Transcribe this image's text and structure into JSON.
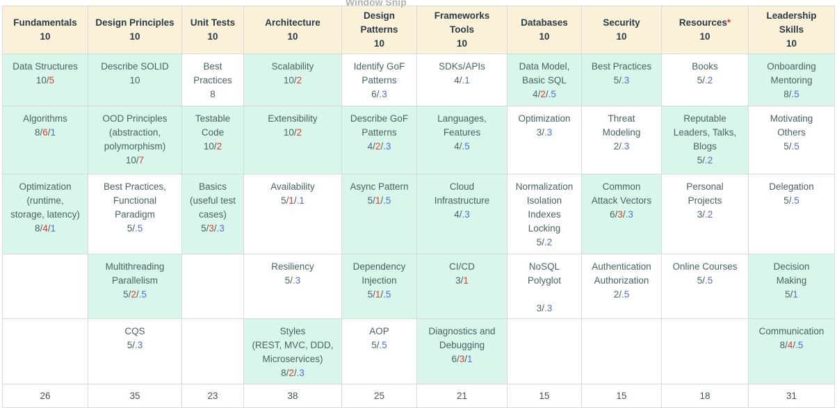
{
  "overlay": {
    "text": "Window Snip"
  },
  "palette": {
    "header_bg": "#fbf1d8",
    "highlight_bg": "#d9f6ea",
    "border": "#d5dade",
    "header_text": "#2a3b47",
    "cell_text": "#4a6264",
    "score_red": "#e5392e",
    "score_blue": "#4a6ee0"
  },
  "table": {
    "columns": [
      {
        "label": "Fundamentals",
        "max": "10",
        "star": false
      },
      {
        "label": "Design Principles",
        "max": "10",
        "star": false
      },
      {
        "label": "Unit Tests",
        "max": "10",
        "star": false
      },
      {
        "label": "Architecture",
        "max": "10",
        "star": false
      },
      {
        "label": "Design Patterns",
        "max": "10",
        "star": false
      },
      {
        "label": "Frameworks Tools",
        "max": "10",
        "star": false
      },
      {
        "label": "Databases",
        "max": "10",
        "star": false
      },
      {
        "label": "Security",
        "max": "10",
        "star": false
      },
      {
        "label": "Resources",
        "max": "10",
        "star": true
      },
      {
        "label": "Leadership Skills",
        "max": "10",
        "star": false
      }
    ],
    "rows": [
      [
        {
          "lines": [
            "Data Structures"
          ],
          "score": [
            [
              "10",
              "d"
            ],
            [
              "5",
              "r"
            ]
          ],
          "highlight": true
        },
        {
          "lines": [
            "Describe SOLID"
          ],
          "score": [
            [
              "10",
              "d"
            ]
          ],
          "highlight": true
        },
        {
          "lines": [
            "Best",
            "Practices"
          ],
          "score": [
            [
              "8",
              "d"
            ]
          ],
          "highlight": false
        },
        {
          "lines": [
            "Scalability"
          ],
          "score": [
            [
              "10",
              "d"
            ],
            [
              "2",
              "r"
            ]
          ],
          "highlight": true
        },
        {
          "lines": [
            "Identify GoF",
            "Patterns"
          ],
          "score": [
            [
              "6",
              "d"
            ],
            [
              ".3",
              "b"
            ]
          ],
          "highlight": false
        },
        {
          "lines": [
            "SDKs/APIs"
          ],
          "score": [
            [
              "4",
              "d"
            ],
            [
              ".1",
              "b"
            ]
          ],
          "highlight": false
        },
        {
          "lines": [
            "Data Model,",
            "Basic SQL"
          ],
          "score": [
            [
              "4",
              "d"
            ],
            [
              "2",
              "r"
            ],
            [
              ".5",
              "b"
            ]
          ],
          "highlight": true
        },
        {
          "lines": [
            "Best Practices"
          ],
          "score": [
            [
              "5",
              "d"
            ],
            [
              ".3",
              "b"
            ]
          ],
          "highlight": true
        },
        {
          "lines": [
            "Books"
          ],
          "score": [
            [
              "5",
              "d"
            ],
            [
              ".2",
              "b"
            ]
          ],
          "highlight": false
        },
        {
          "lines": [
            "Onboarding",
            "Mentoring"
          ],
          "score": [
            [
              "8",
              "d"
            ],
            [
              ".5",
              "b"
            ]
          ],
          "highlight": true
        }
      ],
      [
        {
          "lines": [
            "Algorithms"
          ],
          "score": [
            [
              "8",
              "d"
            ],
            [
              "6",
              "r"
            ],
            [
              "1",
              "b"
            ]
          ],
          "highlight": true
        },
        {
          "lines": [
            "OOD Principles",
            "(abstraction,",
            "polymorphism)"
          ],
          "score": [
            [
              "10",
              "d"
            ],
            [
              "7",
              "r"
            ]
          ],
          "highlight": true
        },
        {
          "lines": [
            "Testable",
            "Code"
          ],
          "score": [
            [
              "10",
              "d"
            ],
            [
              "2",
              "r"
            ]
          ],
          "highlight": true
        },
        {
          "lines": [
            "Extensibility"
          ],
          "score": [
            [
              "10",
              "d"
            ],
            [
              "2",
              "r"
            ]
          ],
          "highlight": true
        },
        {
          "lines": [
            "Describe GoF",
            "Patterns"
          ],
          "score": [
            [
              "4",
              "d"
            ],
            [
              "2",
              "r"
            ],
            [
              ".3",
              "b"
            ]
          ],
          "highlight": true
        },
        {
          "lines": [
            "Languages,",
            "Features"
          ],
          "score": [
            [
              "4",
              "d"
            ],
            [
              ".5",
              "b"
            ]
          ],
          "highlight": true
        },
        {
          "lines": [
            "Optimization"
          ],
          "score": [
            [
              "3",
              "d"
            ],
            [
              ".3",
              "b"
            ]
          ],
          "highlight": false
        },
        {
          "lines": [
            "Threat",
            "Modeling"
          ],
          "score": [
            [
              "2",
              "d"
            ],
            [
              ".3",
              "b"
            ]
          ],
          "highlight": false
        },
        {
          "lines": [
            "Reputable",
            "Leaders, Talks,",
            "Blogs"
          ],
          "score": [
            [
              "5",
              "d"
            ],
            [
              ".2",
              "b"
            ]
          ],
          "highlight": true
        },
        {
          "lines": [
            "Motivating",
            "Others"
          ],
          "score": [
            [
              "5",
              "d"
            ],
            [
              ".5",
              "b"
            ]
          ],
          "highlight": false
        }
      ],
      [
        {
          "lines": [
            "Optimization",
            "(runtime,",
            "storage, latency)"
          ],
          "score": [
            [
              "8",
              "d"
            ],
            [
              "4",
              "r"
            ],
            [
              "1",
              "b"
            ]
          ],
          "highlight": true
        },
        {
          "lines": [
            "Best Practices,",
            "Functional",
            "Paradigm"
          ],
          "score": [
            [
              "5",
              "d"
            ],
            [
              ".5",
              "b"
            ]
          ],
          "highlight": false
        },
        {
          "lines": [
            "Basics",
            "(useful test",
            "cases)"
          ],
          "score": [
            [
              "5",
              "d"
            ],
            [
              "3",
              "r"
            ],
            [
              ".3",
              "b"
            ]
          ],
          "highlight": true
        },
        {
          "lines": [
            "Availability"
          ],
          "score": [
            [
              "5",
              "d"
            ],
            [
              "1",
              "r"
            ],
            [
              ".1",
              "b"
            ]
          ],
          "highlight": false
        },
        {
          "lines": [
            "Async Pattern"
          ],
          "score": [
            [
              "5",
              "d"
            ],
            [
              "1",
              "r"
            ],
            [
              ".5",
              "b"
            ]
          ],
          "highlight": true
        },
        {
          "lines": [
            "Cloud",
            "Infrastructure"
          ],
          "score": [
            [
              "4",
              "d"
            ],
            [
              ".3",
              "b"
            ]
          ],
          "highlight": true
        },
        {
          "lines": [
            "Normalization",
            "Isolation",
            "Indexes",
            "Locking"
          ],
          "score": [
            [
              "5",
              "d"
            ],
            [
              ".2",
              "b"
            ]
          ],
          "highlight": false
        },
        {
          "lines": [
            "Common",
            "Attack Vectors"
          ],
          "score": [
            [
              "6",
              "d"
            ],
            [
              "3",
              "r"
            ],
            [
              ".3",
              "b"
            ]
          ],
          "highlight": true
        },
        {
          "lines": [
            "Personal",
            "Projects"
          ],
          "score": [
            [
              "3",
              "d"
            ],
            [
              ".2",
              "b"
            ]
          ],
          "highlight": false
        },
        {
          "lines": [
            "Delegation"
          ],
          "score": [
            [
              "5",
              "d"
            ],
            [
              ".5",
              "b"
            ]
          ],
          "highlight": false
        }
      ],
      [
        {
          "lines": [],
          "score": null,
          "highlight": false
        },
        {
          "lines": [
            "Multithreading",
            "Parallelism"
          ],
          "score": [
            [
              "5",
              "d"
            ],
            [
              "2",
              "r"
            ],
            [
              ".5",
              "b"
            ]
          ],
          "highlight": true
        },
        {
          "lines": [],
          "score": null,
          "highlight": false
        },
        {
          "lines": [
            "Resiliency"
          ],
          "score": [
            [
              "5",
              "d"
            ],
            [
              ".3",
              "b"
            ]
          ],
          "highlight": false
        },
        {
          "lines": [
            "Dependency",
            "Injection"
          ],
          "score": [
            [
              "5",
              "d"
            ],
            [
              "1",
              "r"
            ],
            [
              ".5",
              "b"
            ]
          ],
          "highlight": true
        },
        {
          "lines": [
            "CI/CD"
          ],
          "score": [
            [
              "3",
              "d"
            ],
            [
              "1",
              "r"
            ]
          ],
          "highlight": true
        },
        {
          "lines": [
            "NoSQL",
            "Polyglot",
            ""
          ],
          "score": [
            [
              "3",
              "d"
            ],
            [
              ".3",
              "b"
            ]
          ],
          "highlight": false
        },
        {
          "lines": [
            "Authentication",
            "Authorization"
          ],
          "score": [
            [
              "2",
              "d"
            ],
            [
              ".5",
              "b"
            ]
          ],
          "highlight": false
        },
        {
          "lines": [
            "Online Courses"
          ],
          "score": [
            [
              "5",
              "d"
            ],
            [
              ".5",
              "b"
            ]
          ],
          "highlight": false
        },
        {
          "lines": [
            "Decision",
            "Making"
          ],
          "score": [
            [
              "5",
              "d"
            ],
            [
              "1",
              "b"
            ]
          ],
          "highlight": true
        }
      ],
      [
        {
          "lines": [],
          "score": null,
          "highlight": false
        },
        {
          "lines": [
            "CQS"
          ],
          "score": [
            [
              "5",
              "d"
            ],
            [
              ".3",
              "b"
            ]
          ],
          "highlight": false
        },
        {
          "lines": [],
          "score": null,
          "highlight": false
        },
        {
          "lines": [
            "Styles",
            "(REST, MVC, DDD,",
            "Microservices)"
          ],
          "score": [
            [
              "8",
              "d"
            ],
            [
              "2",
              "r"
            ],
            [
              ".3",
              "b"
            ]
          ],
          "highlight": true
        },
        {
          "lines": [
            "AOP"
          ],
          "score": [
            [
              "5",
              "d"
            ],
            [
              ".5",
              "b"
            ]
          ],
          "highlight": false
        },
        {
          "lines": [
            "Diagnostics and",
            "Debugging"
          ],
          "score": [
            [
              "6",
              "d"
            ],
            [
              "3",
              "r"
            ],
            [
              "1",
              "b"
            ]
          ],
          "highlight": true
        },
        {
          "lines": [],
          "score": null,
          "highlight": false
        },
        {
          "lines": [],
          "score": null,
          "highlight": false
        },
        {
          "lines": [],
          "score": null,
          "highlight": false
        },
        {
          "lines": [
            "Communication"
          ],
          "score": [
            [
              "8",
              "d"
            ],
            [
              "4",
              "r"
            ],
            [
              ".5",
              "b"
            ]
          ],
          "highlight": true
        }
      ]
    ],
    "totals": [
      "26",
      "35",
      "23",
      "38",
      "25",
      "21",
      "15",
      "15",
      "18",
      "31"
    ]
  }
}
